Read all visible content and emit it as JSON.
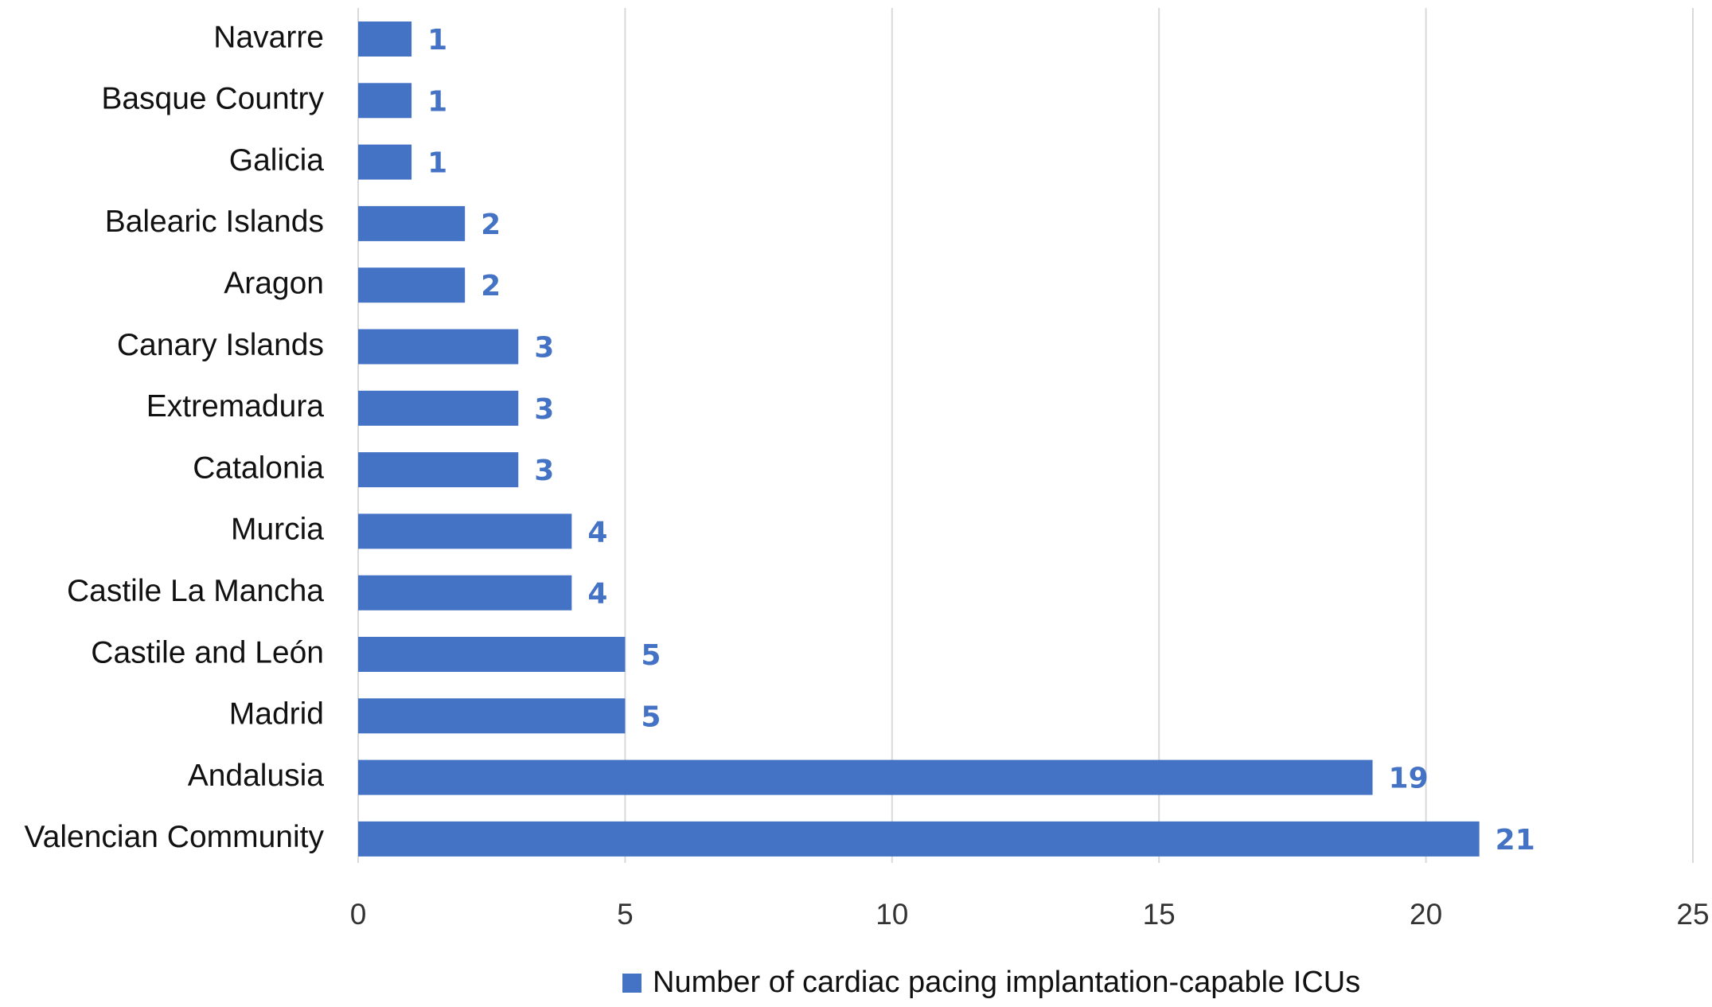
{
  "chart_data": {
    "type": "barh",
    "categories": [
      "Navarre",
      "Basque Country",
      "Galicia",
      "Balearic Islands",
      "Aragon",
      "Canary Islands",
      "Extremadura",
      "Catalonia",
      "Murcia",
      "Castile La Mancha",
      "Castile and León",
      "Madrid",
      "Andalusia",
      "Valencian Community"
    ],
    "series": [
      {
        "name": "Number of cardiac pacing implantation-capable ICUs",
        "color": "#4472c4",
        "values": [
          1,
          1,
          1,
          2,
          2,
          3,
          3,
          3,
          4,
          4,
          5,
          5,
          19,
          21
        ]
      }
    ],
    "xlim": [
      0,
      25
    ],
    "xticks": [
      0,
      5,
      10,
      15,
      20,
      25
    ],
    "grid": true,
    "legend": "bottom"
  }
}
